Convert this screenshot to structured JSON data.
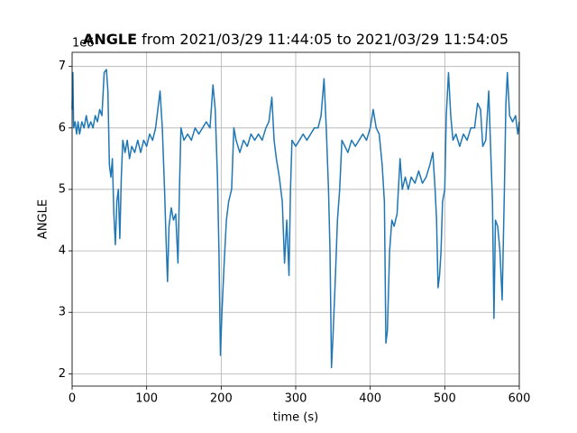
{
  "chart_data": {
    "type": "line",
    "title_bold": "ANGLE",
    "title": "from 2021/03/29 11:44:05 to 2021/03/29 11:54:05",
    "y_offset_label": "1e6",
    "xlabel": "time (s)",
    "ylabel": "ANGLE",
    "xlim": [
      0,
      600
    ],
    "xticks": [
      0,
      100,
      200,
      300,
      400,
      500,
      600
    ],
    "ylim": [
      1.8,
      7.23
    ],
    "yticks": [
      2,
      3,
      4,
      5,
      6,
      7
    ],
    "grid": true,
    "series": [
      {
        "color": "#1f77b4",
        "x": [
          0,
          1,
          2,
          4,
          6,
          8,
          10,
          13,
          16,
          19,
          22,
          25,
          28,
          31,
          34,
          37,
          40,
          43,
          46,
          48,
          50,
          52,
          54,
          56,
          58,
          60,
          62,
          64,
          66,
          68,
          71,
          74,
          77,
          80,
          84,
          88,
          92,
          96,
          100,
          104,
          108,
          112,
          115,
          118,
          121,
          124,
          126,
          128,
          130,
          133,
          136,
          139,
          142,
          144,
          146,
          150,
          155,
          160,
          165,
          170,
          175,
          180,
          185,
          189,
          192,
          195,
          197,
          199,
          201,
          204,
          207,
          210,
          214,
          217,
          220,
          225,
          230,
          235,
          240,
          245,
          250,
          255,
          260,
          264,
          268,
          271,
          274,
          278,
          282,
          285,
          288,
          291,
          293,
          295,
          300,
          305,
          310,
          315,
          320,
          325,
          330,
          334,
          338,
          341,
          344,
          346,
          348,
          350,
          353,
          356,
          359,
          362,
          366,
          370,
          375,
          380,
          385,
          390,
          395,
          400,
          404,
          408,
          412,
          416,
          419,
          421,
          423,
          426,
          429,
          432,
          436,
          440,
          443,
          447,
          451,
          455,
          460,
          465,
          470,
          475,
          480,
          484,
          487,
          489,
          491,
          493,
          495,
          497,
          500,
          502,
          505,
          508,
          511,
          515,
          520,
          525,
          530,
          535,
          540,
          544,
          548,
          551,
          555,
          559,
          562,
          564,
          566,
          568,
          571,
          574,
          577,
          580,
          582,
          584,
          587,
          591,
          595,
          598,
          600
        ],
        "values": [
          6.3,
          6.9,
          6.0,
          6.1,
          5.9,
          6.1,
          5.9,
          6.1,
          6.0,
          6.2,
          6.0,
          6.1,
          6.0,
          6.2,
          6.1,
          6.3,
          6.2,
          6.9,
          6.95,
          6.6,
          5.4,
          5.2,
          5.5,
          4.6,
          4.1,
          4.8,
          5.0,
          4.2,
          5.2,
          5.8,
          5.6,
          5.8,
          5.5,
          5.7,
          5.6,
          5.8,
          5.6,
          5.8,
          5.7,
          5.9,
          5.8,
          6.0,
          6.3,
          6.6,
          6.0,
          5.0,
          4.2,
          3.5,
          4.4,
          4.7,
          4.5,
          4.6,
          3.8,
          5.0,
          6.0,
          5.8,
          5.9,
          5.8,
          6.0,
          5.9,
          6.0,
          6.1,
          6.0,
          6.7,
          6.3,
          5.2,
          4.0,
          2.3,
          3.0,
          3.8,
          4.5,
          4.8,
          5.0,
          6.0,
          5.8,
          5.6,
          5.8,
          5.7,
          5.9,
          5.8,
          5.9,
          5.8,
          6.0,
          6.1,
          6.5,
          5.8,
          5.5,
          5.2,
          4.8,
          3.8,
          4.5,
          3.6,
          5.0,
          5.8,
          5.7,
          5.8,
          5.9,
          5.8,
          5.9,
          6.0,
          6.0,
          6.2,
          6.8,
          6.0,
          5.0,
          4.0,
          2.1,
          2.6,
          3.5,
          4.5,
          5.0,
          5.8,
          5.7,
          5.6,
          5.8,
          5.7,
          5.8,
          5.9,
          5.8,
          6.0,
          6.3,
          6.0,
          5.9,
          5.4,
          4.8,
          2.5,
          2.7,
          4.0,
          4.5,
          4.4,
          4.6,
          5.5,
          5.0,
          5.2,
          5.0,
          5.2,
          5.1,
          5.3,
          5.1,
          5.2,
          5.4,
          5.6,
          5.0,
          4.5,
          3.4,
          3.6,
          4.0,
          4.8,
          5.0,
          6.2,
          6.9,
          6.2,
          5.8,
          5.9,
          5.7,
          5.9,
          5.8,
          6.0,
          6.0,
          6.4,
          6.3,
          5.7,
          5.8,
          6.6,
          5.5,
          4.8,
          2.9,
          4.5,
          4.4,
          4.0,
          3.2,
          5.0,
          6.4,
          6.9,
          6.2,
          6.1,
          6.2,
          5.9,
          6.1
        ]
      }
    ]
  }
}
